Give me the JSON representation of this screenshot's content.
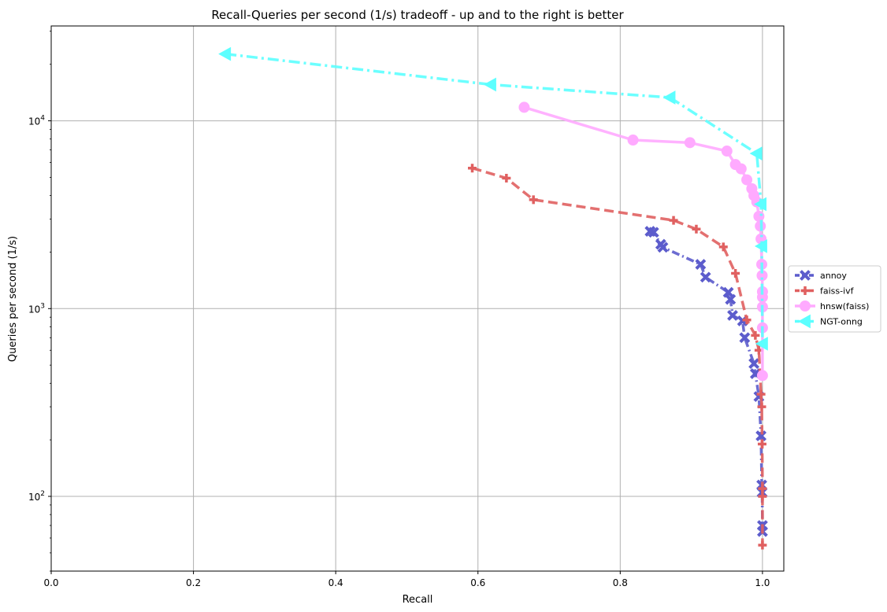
{
  "chart_data": {
    "type": "line",
    "title": "Recall-Queries per second (1/s) tradeoff - up and to the right is better",
    "xlabel": "Recall",
    "ylabel": "Queries per second (1/s)",
    "xlim": [
      0.0,
      1.03
    ],
    "ylim": [
      40,
      32000
    ],
    "yscale": "log",
    "grid": true,
    "legend_position": "center-right-outside",
    "x_ticks": [
      {
        "value": 0.0,
        "label": "0.0"
      },
      {
        "value": 0.2,
        "label": "0.2"
      },
      {
        "value": 0.4,
        "label": "0.4"
      },
      {
        "value": 0.6,
        "label": "0.6"
      },
      {
        "value": 0.8,
        "label": "0.8"
      },
      {
        "value": 1.0,
        "label": "1.0"
      }
    ],
    "y_ticks": [
      {
        "value": 100,
        "base": "10",
        "exp": "2"
      },
      {
        "value": 1000,
        "base": "10",
        "exp": "3"
      },
      {
        "value": 10000,
        "base": "10",
        "exp": "4"
      }
    ],
    "series": [
      {
        "name": "annoy",
        "color": "#5c5ccc",
        "dash": "dotdash",
        "marker": "x",
        "points": [
          [
            0.842,
            2580
          ],
          [
            0.847,
            2550
          ],
          [
            0.857,
            2200
          ],
          [
            0.86,
            2120
          ],
          [
            0.913,
            1720
          ],
          [
            0.92,
            1470
          ],
          [
            0.952,
            1220
          ],
          [
            0.955,
            1120
          ],
          [
            0.958,
            920
          ],
          [
            0.972,
            860
          ],
          [
            0.975,
            700
          ],
          [
            0.988,
            510
          ],
          [
            0.99,
            450
          ],
          [
            0.995,
            340
          ],
          [
            0.998,
            210
          ],
          [
            0.999,
            115
          ],
          [
            0.9995,
            105
          ],
          [
            1.0,
            70
          ],
          [
            1.0,
            65
          ]
        ]
      },
      {
        "name": "faiss-ivf",
        "color": "#e06060",
        "dash": "dashed",
        "marker": "plus",
        "points": [
          [
            0.592,
            5600
          ],
          [
            0.64,
            4950
          ],
          [
            0.678,
            3800
          ],
          [
            0.875,
            2950
          ],
          [
            0.907,
            2650
          ],
          [
            0.945,
            2130
          ],
          [
            0.962,
            1540
          ],
          [
            0.978,
            870
          ],
          [
            0.99,
            720
          ],
          [
            0.995,
            600
          ],
          [
            0.998,
            350
          ],
          [
            0.999,
            300
          ],
          [
            0.9995,
            190
          ],
          [
            1.0,
            110
          ],
          [
            1.0,
            100
          ],
          [
            1.0,
            55
          ]
        ]
      },
      {
        "name": "hnsw(faiss)",
        "color": "#ffaaff",
        "dash": "solid",
        "marker": "circle",
        "points": [
          [
            0.665,
            11800
          ],
          [
            0.818,
            7900
          ],
          [
            0.898,
            7650
          ],
          [
            0.95,
            6900
          ],
          [
            0.962,
            5850
          ],
          [
            0.97,
            5550
          ],
          [
            0.978,
            4850
          ],
          [
            0.985,
            4350
          ],
          [
            0.988,
            4000
          ],
          [
            0.992,
            3700
          ],
          [
            0.995,
            3100
          ],
          [
            0.997,
            2750
          ],
          [
            0.998,
            2350
          ],
          [
            0.999,
            1720
          ],
          [
            0.9995,
            1500
          ],
          [
            1.0,
            1230
          ],
          [
            1.0,
            1150
          ],
          [
            1.0,
            1020
          ],
          [
            1.0,
            790
          ],
          [
            1.0,
            440
          ]
        ]
      },
      {
        "name": "NGT-onng",
        "color": "#5cffff",
        "dash": "dashdot",
        "marker": "triangle-left",
        "points": [
          [
            0.245,
            22700
          ],
          [
            0.618,
            15600
          ],
          [
            0.87,
            13300
          ],
          [
            0.992,
            6700
          ],
          [
            0.998,
            3600
          ],
          [
            0.999,
            2150
          ],
          [
            1.0,
            650
          ]
        ]
      }
    ]
  }
}
